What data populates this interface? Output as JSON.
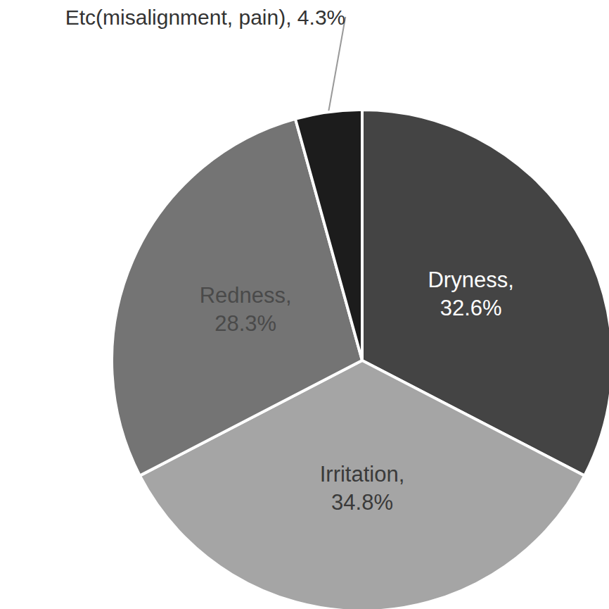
{
  "chart_data": {
    "type": "pie",
    "categories": [
      "Dryness",
      "Irritation",
      "Redness",
      "Etc(misalignment, pain)"
    ],
    "values": [
      32.6,
      34.8,
      28.3,
      4.3
    ],
    "value_labels": [
      "Dryness, 32.6%",
      "Irritation, 34.8%",
      "Redness, 28.3%",
      "Etc(misalignment, pain), 4.3%"
    ],
    "colors": [
      "#444444",
      "#a5a5a5",
      "#747474",
      "#1c1c1c"
    ],
    "data_labels": true
  }
}
